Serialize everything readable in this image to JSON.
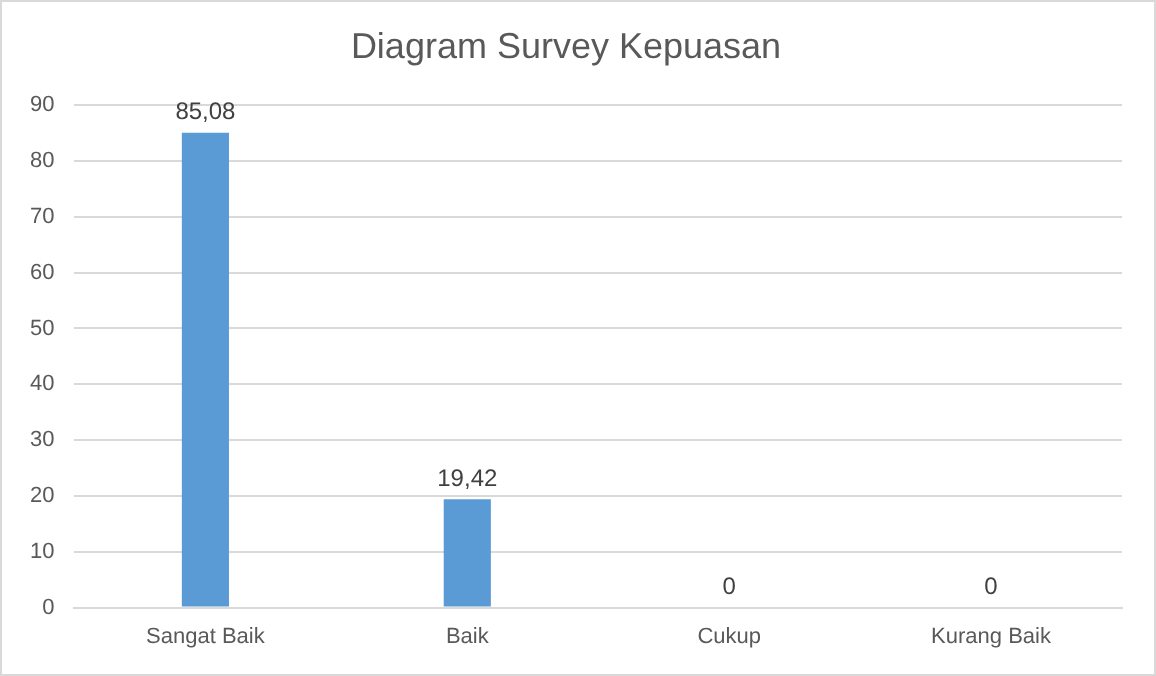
{
  "chart_data": {
    "type": "bar",
    "title": "Diagram Survey Kepuasan",
    "categories": [
      "Sangat Baik",
      "Baik",
      "Cukup",
      "Kurang Baik"
    ],
    "values": [
      85.08,
      19.42,
      0,
      0
    ],
    "value_labels": [
      "85,08",
      "19,42",
      "0",
      "0"
    ],
    "color": "#5b9bd5",
    "ylim": [
      0,
      90
    ],
    "yticks": [
      0,
      10,
      20,
      30,
      40,
      50,
      60,
      70,
      80,
      90
    ],
    "grid": "y"
  }
}
